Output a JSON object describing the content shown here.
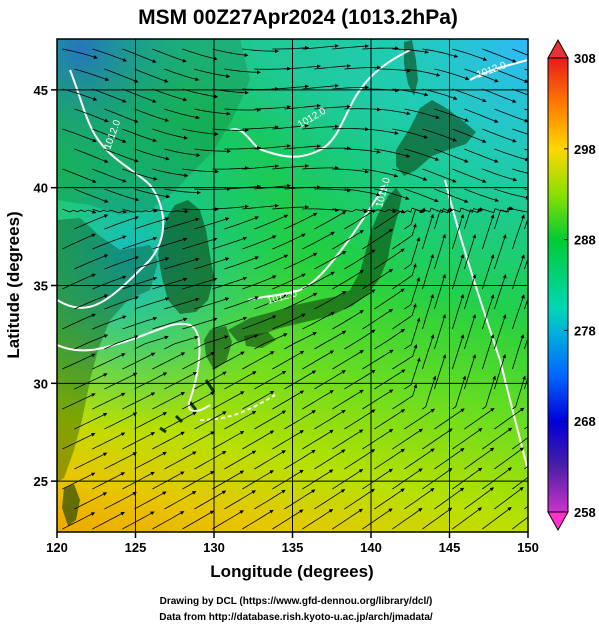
{
  "title": "MSM 00Z27Apr2024 (1013.2hPa)",
  "x_axis": {
    "label": "Longitude (degrees)",
    "ticks": [
      "120",
      "125",
      "130",
      "135",
      "140",
      "145",
      "150"
    ],
    "range": [
      120,
      150
    ]
  },
  "y_axis": {
    "label": "Latitude  (degrees)",
    "ticks": [
      "25",
      "30",
      "35",
      "40",
      "45"
    ],
    "range": [
      22.4,
      47.6
    ]
  },
  "colorbar": {
    "ticks": [
      "258",
      "268",
      "278",
      "288",
      "298",
      "308"
    ],
    "range": [
      258,
      308
    ]
  },
  "contour_labels": [
    "1012.0",
    "1012.0",
    "1012.0",
    "1012.0",
    "1012.0"
  ],
  "credits": {
    "line1": "Drawing by DCL (https://www.gfd-dennou.org/library/dcl/)",
    "line2": "Data from http://database.rish.kyoto-u.ac.jp/arch/jmadata/"
  },
  "colors": {
    "land_fill": "#0a3b0a",
    "contour": "#ffffff",
    "streamline": "#000000",
    "gridline": "#000000"
  }
}
